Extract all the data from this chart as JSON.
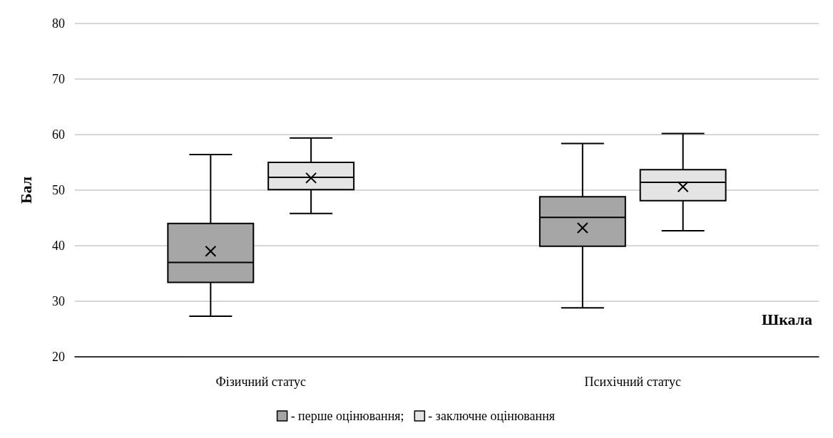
{
  "chart_data": {
    "type": "box",
    "xlabel": "Шкала",
    "ylabel": "Бал",
    "categories": [
      "Фізичний статус",
      "Психічний статус"
    ],
    "series": [
      {
        "name": "- перше оцінювання;",
        "color": "#a6a6a6",
        "boxes": [
          {
            "low": 27.3,
            "q1": 33.4,
            "median": 37.0,
            "q3": 44.0,
            "high": 56.4,
            "mean": 39.0
          },
          {
            "low": 28.8,
            "q1": 39.9,
            "median": 45.1,
            "q3": 48.8,
            "high": 58.4,
            "mean": 43.2
          }
        ]
      },
      {
        "name": "- заключне оцінювання",
        "color": "#e4e4e4",
        "boxes": [
          {
            "low": 45.8,
            "q1": 50.1,
            "median": 52.3,
            "q3": 55.0,
            "high": 59.4,
            "mean": 52.2
          },
          {
            "low": 42.7,
            "q1": 48.1,
            "median": 51.4,
            "q3": 53.7,
            "high": 60.2,
            "mean": 50.6
          }
        ]
      }
    ],
    "ylim": [
      20,
      80
    ],
    "yticks": [
      20,
      30,
      40,
      50,
      60,
      70,
      80
    ],
    "grid": "y",
    "legend": "bottom",
    "marker": "cross"
  }
}
